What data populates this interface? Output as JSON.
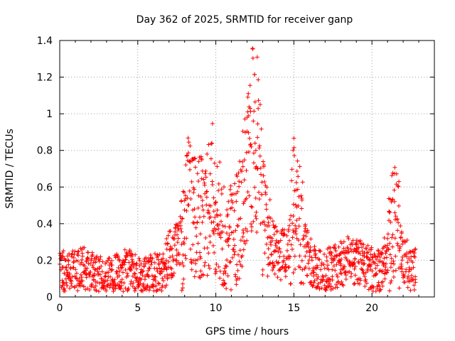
{
  "chart_data": {
    "type": "scatter",
    "title": "Day 362 of 2025, SRMTID for receiver ganp",
    "xlabel": "GPS time / hours",
    "ylabel": "SRMTID / TECUs",
    "xlim": [
      0,
      24
    ],
    "ylim": [
      0,
      1.4
    ],
    "xticks": [
      0,
      5,
      10,
      15,
      20
    ],
    "xtick_labels": [
      "0",
      "5",
      "10",
      "15",
      "20"
    ],
    "yticks": [
      0,
      0.2,
      0.4,
      0.6,
      0.8,
      1.0,
      1.2,
      1.4
    ],
    "ytick_labels": [
      "0",
      "0.2",
      "0.4",
      "0.6",
      "0.8",
      "1",
      "1.2",
      "1.4"
    ],
    "grid": true,
    "marker": "+",
    "marker_color": "#ff0000",
    "series": [
      {
        "name": "SRMTID",
        "x": [
          0.0,
          0.5,
          1.0,
          1.5,
          2.0,
          2.5,
          3.0,
          3.5,
          4.0,
          4.5,
          5.0,
          5.5,
          6.0,
          6.5,
          7.0,
          7.5,
          8.0,
          8.25,
          8.5,
          9.0,
          9.5,
          9.75,
          10.0,
          10.5,
          11.0,
          11.5,
          11.75,
          12.0,
          12.25,
          12.5,
          12.75,
          13.0,
          13.5,
          14.0,
          14.5,
          14.75,
          15.0,
          15.5,
          16.0,
          16.5,
          17.0,
          17.5,
          18.0,
          18.5,
          19.0,
          19.5,
          20.0,
          20.5,
          21.0,
          21.25,
          21.5,
          21.75,
          22.0,
          22.5
        ],
        "y": [
          0.15,
          0.12,
          0.14,
          0.16,
          0.13,
          0.11,
          0.1,
          0.12,
          0.13,
          0.15,
          0.12,
          0.11,
          0.12,
          0.14,
          0.22,
          0.26,
          0.33,
          0.6,
          0.45,
          0.43,
          0.48,
          0.58,
          0.45,
          0.36,
          0.32,
          0.42,
          0.55,
          0.7,
          0.85,
          0.9,
          0.8,
          0.45,
          0.3,
          0.22,
          0.25,
          0.3,
          0.5,
          0.35,
          0.2,
          0.16,
          0.14,
          0.16,
          0.18,
          0.2,
          0.2,
          0.17,
          0.16,
          0.13,
          0.28,
          0.35,
          0.42,
          0.33,
          0.22,
          0.15
        ]
      }
    ]
  }
}
